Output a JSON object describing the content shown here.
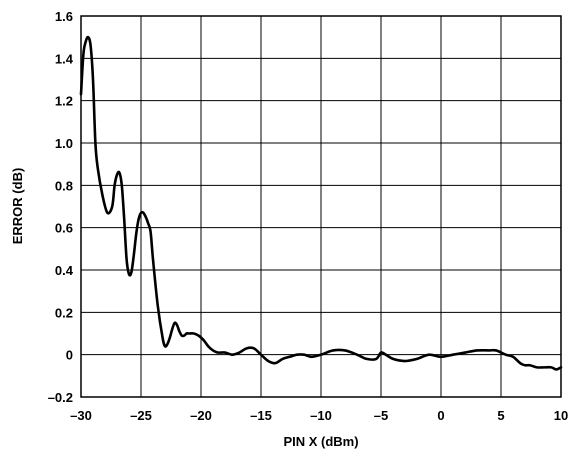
{
  "chart_data": {
    "type": "line",
    "title": "",
    "xlabel": "PIN X (dBm)",
    "ylabel": "ERROR (dB)",
    "xlim": [
      -30,
      10
    ],
    "ylim": [
      -0.2,
      1.6
    ],
    "xticks": [
      -30,
      -25,
      -20,
      -15,
      -10,
      -5,
      0,
      5,
      10
    ],
    "xtick_labels": [
      "–30",
      "–25",
      "–20",
      "–15",
      "–10",
      "–5",
      "0",
      "5",
      "10"
    ],
    "yticks": [
      -0.2,
      0,
      0.2,
      0.4,
      0.6,
      0.8,
      1.0,
      1.2,
      1.4,
      1.6
    ],
    "ytick_labels": [
      "–0.2",
      "0",
      "0.2",
      "0.4",
      "0.6",
      "0.8",
      "1.0",
      "1.2",
      "1.4",
      "1.6"
    ],
    "grid": true,
    "series": [
      {
        "x": [
          -30,
          -29.8,
          -29.6,
          -29.4,
          -29.2,
          -29.0,
          -28.8,
          -28.6,
          -28.2,
          -27.8,
          -27.4,
          -27.2,
          -27.0,
          -26.8,
          -26.6,
          -26.4,
          -26.2,
          -26.0,
          -25.8,
          -25.6,
          -25.4,
          -25.2,
          -25.0,
          -24.8,
          -24.6,
          -24.4,
          -24.2,
          -24.0,
          -23.6,
          -23.2,
          -23.0,
          -22.8,
          -22.6,
          -22.4,
          -22.2,
          -22.0,
          -21.8,
          -21.6,
          -21.4,
          -21.2,
          -21.0,
          -20.6,
          -20.2,
          -19.8,
          -19.4,
          -19.0,
          -18.6,
          -18.0,
          -17.4,
          -16.8,
          -16.2,
          -15.6,
          -15.0,
          -14.4,
          -13.8,
          -13.2,
          -12.6,
          -12.0,
          -11.4,
          -10.8,
          -10.0,
          -9.0,
          -8.0,
          -7.0,
          -6.2,
          -5.4,
          -5.0,
          -4.6,
          -4.0,
          -3.0,
          -2.0,
          -1.0,
          0.0,
          1.0,
          2.0,
          3.0,
          4.0,
          4.6,
          5.4,
          6.0,
          6.6,
          7.0,
          7.4,
          8.0,
          8.6,
          9.2,
          9.6,
          10.0
        ],
        "y": [
          1.23,
          1.42,
          1.48,
          1.5,
          1.46,
          1.3,
          1.0,
          0.88,
          0.75,
          0.67,
          0.7,
          0.8,
          0.85,
          0.86,
          0.8,
          0.64,
          0.45,
          0.38,
          0.39,
          0.47,
          0.57,
          0.64,
          0.67,
          0.67,
          0.65,
          0.62,
          0.58,
          0.45,
          0.23,
          0.08,
          0.04,
          0.05,
          0.08,
          0.12,
          0.15,
          0.14,
          0.11,
          0.09,
          0.09,
          0.1,
          0.1,
          0.1,
          0.09,
          0.07,
          0.04,
          0.02,
          0.01,
          0.01,
          0.0,
          0.01,
          0.03,
          0.03,
          0.0,
          -0.03,
          -0.04,
          -0.02,
          -0.01,
          0.0,
          0.0,
          -0.01,
          0.0,
          0.02,
          0.02,
          0.0,
          -0.02,
          -0.02,
          0.01,
          0.0,
          -0.02,
          -0.03,
          -0.02,
          0.0,
          -0.01,
          0.0,
          0.01,
          0.02,
          0.02,
          0.02,
          0.0,
          -0.01,
          -0.04,
          -0.05,
          -0.05,
          -0.06,
          -0.06,
          -0.06,
          -0.07,
          -0.06
        ]
      }
    ]
  }
}
